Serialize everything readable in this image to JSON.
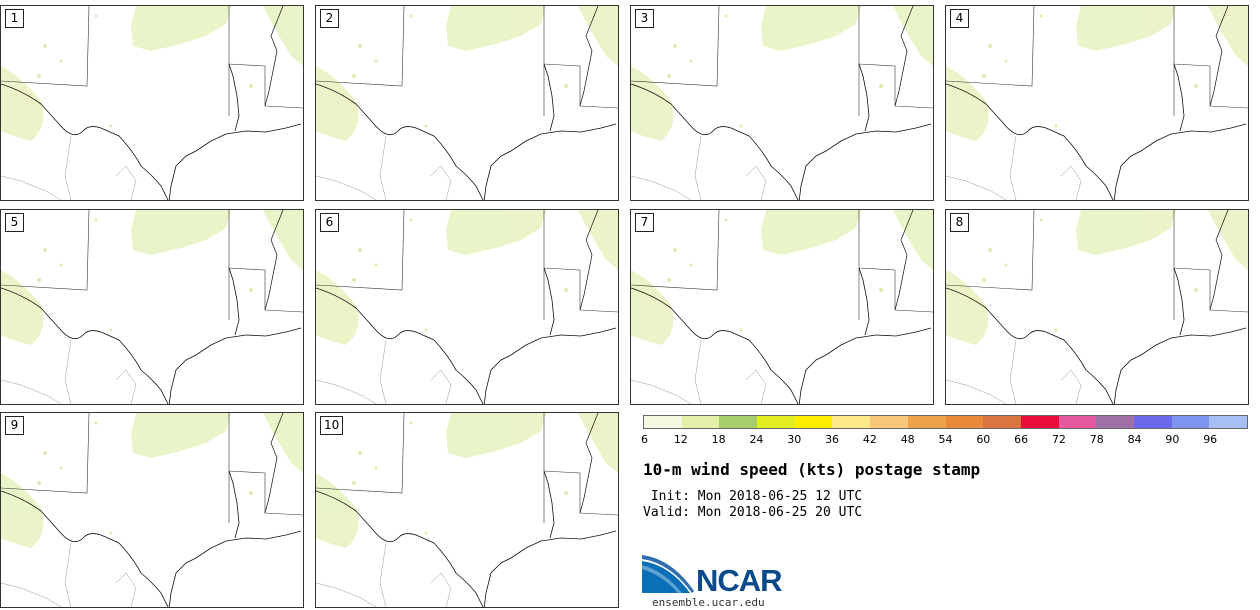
{
  "panels": [
    "1",
    "2",
    "3",
    "4",
    "5",
    "6",
    "7",
    "8",
    "9",
    "10"
  ],
  "colorbar": {
    "colors": [
      "#f5f7e1",
      "#e3f1a8",
      "#a9cf6c",
      "#e3ee22",
      "#ffee00",
      "#ffe88a",
      "#f8c77a",
      "#eea24c",
      "#e88a3a",
      "#da7440",
      "#ea0f3b",
      "#e85aa0",
      "#a06fa8",
      "#6a6aea",
      "#7f94ee",
      "#a8bff3"
    ],
    "ticks": [
      "6",
      "12",
      "18",
      "24",
      "30",
      "36",
      "42",
      "48",
      "54",
      "60",
      "66",
      "72",
      "78",
      "84",
      "90",
      "96"
    ]
  },
  "title": "10-m wind speed (kts) postage stamp",
  "init_line": " Init: Mon 2018-06-25 12 UTC",
  "valid_line": "Valid: Mon 2018-06-25 20 UTC",
  "logo": {
    "name": "NCAR",
    "url": "ensemble.ucar.edu"
  }
}
